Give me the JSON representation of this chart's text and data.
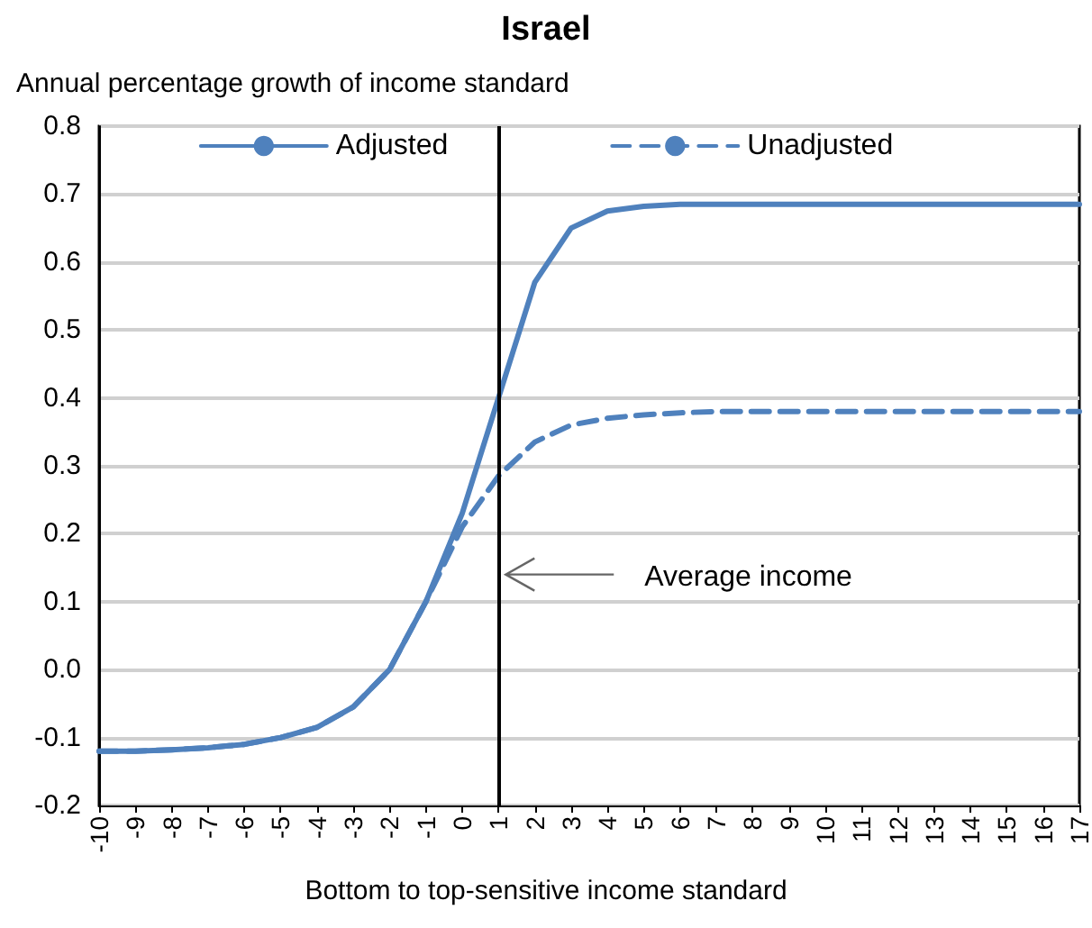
{
  "chart_data": {
    "type": "line",
    "title": "Israel",
    "ylabel": "Annual percentage growth of income standard",
    "xlabel": "Bottom to top-sensitive income standard",
    "x": [
      -10,
      -9,
      -8,
      -7,
      -6,
      -5,
      -4,
      -3,
      -2,
      -1,
      0,
      1,
      2,
      3,
      4,
      5,
      6,
      7,
      8,
      9,
      10,
      11,
      12,
      13,
      14,
      15,
      16,
      17
    ],
    "series": [
      {
        "name": "Adjusted",
        "color": "#4f81bd",
        "line_style": "solid",
        "values": [
          -0.12,
          -0.12,
          -0.118,
          -0.115,
          -0.11,
          -0.1,
          -0.085,
          -0.055,
          0.0,
          0.1,
          0.23,
          0.4,
          0.57,
          0.65,
          0.675,
          0.682,
          0.685,
          0.685,
          0.685,
          0.685,
          0.685,
          0.685,
          0.685,
          0.685,
          0.685,
          0.685,
          0.685,
          0.685
        ]
      },
      {
        "name": "Unadjusted",
        "color": "#4f81bd",
        "line_style": "dashed",
        "values": [
          -0.12,
          -0.12,
          -0.118,
          -0.115,
          -0.11,
          -0.1,
          -0.085,
          -0.055,
          0.0,
          0.1,
          0.21,
          0.285,
          0.335,
          0.36,
          0.37,
          0.375,
          0.378,
          0.38,
          0.38,
          0.38,
          0.38,
          0.38,
          0.38,
          0.38,
          0.38,
          0.38,
          0.38,
          0.38
        ]
      }
    ],
    "xlim": [
      -10,
      17
    ],
    "xticks": [
      -10,
      -9,
      -8,
      -7,
      -6,
      -5,
      -4,
      -3,
      -2,
      -1,
      {
        "value": 0,
        "label": "0"
      },
      1,
      2,
      3,
      4,
      5,
      6,
      7,
      8,
      9,
      10,
      11,
      12,
      13,
      14,
      15,
      16,
      17
    ],
    "ylim": [
      -0.2,
      0.8
    ],
    "yticks": [
      {
        "value": -0.2,
        "label": "-0.2"
      },
      {
        "value": -0.1,
        "label": "-0.1"
      },
      {
        "value": 0,
        "label": "0.0"
      },
      {
        "value": 0.1,
        "label": "0.1"
      },
      {
        "value": 0.2,
        "label": "0.2"
      },
      {
        "value": 0.3,
        "label": "0.3"
      },
      {
        "value": 0.4,
        "label": "0.4"
      },
      {
        "value": 0.5,
        "label": "0.5"
      },
      {
        "value": 0.6,
        "label": "0.6"
      },
      {
        "value": 0.7,
        "label": "0.7"
      },
      {
        "value": 0.8,
        "label": "0.8"
      }
    ],
    "grid": "y",
    "legend": "top",
    "marker": "none",
    "ref_lines": [
      {
        "axis": "x",
        "value": 1,
        "color": "#000000"
      }
    ],
    "annotations": [
      {
        "text": "Average income",
        "x": 1,
        "y": 0.14
      }
    ]
  }
}
